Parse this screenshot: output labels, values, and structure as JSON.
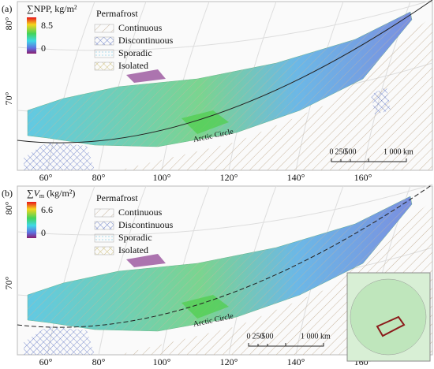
{
  "panels": [
    {
      "label": "(a)",
      "colorbar": {
        "title": {
          "prefix": "∑",
          "symbol": "NPP",
          "subscript": "",
          "unit": ", kg/m²"
        },
        "max": "8.5",
        "min": "0"
      },
      "legend": {
        "title": "Permafrost",
        "items": [
          "Continuous",
          "Discontinuous",
          "Sporadic",
          "Isolated"
        ]
      },
      "lat_labels": [
        "80°",
        "70°"
      ],
      "lon_labels": [
        "60°",
        "80°",
        "100°",
        "120°",
        "140°",
        "160°"
      ],
      "circle_label": "Arctic Circle",
      "scale": [
        "0",
        "250",
        "500",
        "1 000 km"
      ]
    },
    {
      "label": "(b)",
      "colorbar": {
        "title": {
          "prefix": "∑",
          "symbol": "V",
          "subscript": "m",
          "unit": " (kg/m²)"
        },
        "max": "6.6",
        "min": "0"
      },
      "legend": {
        "title": "Permafrost",
        "items": [
          "Continuous",
          "Discontinuous",
          "Sporadic",
          "Isolated"
        ]
      },
      "lat_labels": [
        "80°",
        "70°"
      ],
      "lon_labels": [
        "60°",
        "80°",
        "100°",
        "120°",
        "140°",
        "160°"
      ],
      "circle_label": "Arctic Circle",
      "scale": [
        "0",
        "250",
        "500",
        "1 000 km"
      ]
    }
  ]
}
